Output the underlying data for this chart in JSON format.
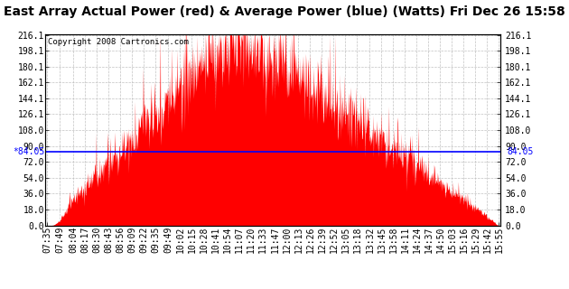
{
  "title": "East Array Actual Power (red) & Average Power (blue) (Watts) Fri Dec 26 15:58",
  "copyright": "Copyright 2008 Cartronics.com",
  "avg_power": 84.05,
  "bar_color": "#FF0000",
  "avg_line_color": "#0000FF",
  "background_color": "#FFFFFF",
  "plot_bg_color": "#FFFFFF",
  "grid_color": "#BBBBBB",
  "ylim": [
    0,
    216.1
  ],
  "yticks": [
    0.0,
    18.0,
    36.0,
    54.0,
    72.0,
    90.0,
    108.0,
    126.1,
    144.1,
    162.1,
    180.1,
    198.1,
    216.1
  ],
  "ytick_labels": [
    "0.0",
    "18.0",
    "36.0",
    "54.0",
    "72.0",
    "90.0",
    "108.0",
    "126.1",
    "144.1",
    "162.1",
    "180.1",
    "198.1",
    "216.1"
  ],
  "title_fontsize": 10,
  "copyright_fontsize": 6.5,
  "avg_label_fontsize": 7,
  "tick_fontsize": 7,
  "xtick_labels": [
    "07:35",
    "07:49",
    "08:04",
    "08:17",
    "08:30",
    "08:43",
    "08:56",
    "09:09",
    "09:22",
    "09:35",
    "09:49",
    "10:02",
    "10:15",
    "10:28",
    "10:41",
    "10:54",
    "11:07",
    "11:20",
    "11:33",
    "11:47",
    "12:00",
    "12:13",
    "12:26",
    "12:39",
    "12:52",
    "13:05",
    "13:18",
    "13:32",
    "13:45",
    "13:58",
    "14:11",
    "14:24",
    "14:37",
    "14:50",
    "15:03",
    "15:16",
    "15:29",
    "15:42",
    "15:55"
  ]
}
